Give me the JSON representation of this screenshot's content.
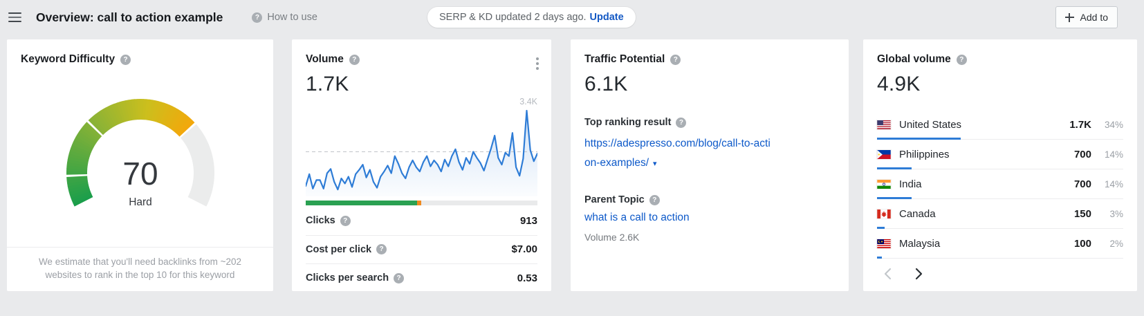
{
  "header": {
    "title": "Overview: call to action example",
    "how_to_use": "How to use",
    "update_notice": "SERP & KD updated 2 days ago.",
    "update_action": "Update",
    "add_to": "Add to"
  },
  "cards": {
    "keyword_difficulty": {
      "title": "Keyword Difficulty",
      "value": "70",
      "difficulty_label": "Hard",
      "note": "We estimate that you'll need backlinks from ~202 websites to rank in the top 10 for this keyword",
      "gauge": {
        "value": 70,
        "max": 100,
        "start_angle": -117,
        "end_angle": 117,
        "segment_boundaries": [
          10,
          30,
          70
        ],
        "color_stops": [
          [
            0,
            "#1b9e4b"
          ],
          [
            0.32,
            "#8db335"
          ],
          [
            0.52,
            "#ccbf1d"
          ],
          [
            0.7,
            "#f4a70b"
          ]
        ],
        "rest_color": "#ebecec"
      }
    },
    "volume": {
      "title": "Volume",
      "value": "1.7K",
      "chart": {
        "type": "area",
        "peak_label": "3.4K",
        "dashed_reference": 52,
        "line_color": "#2e7cd6",
        "values": [
          12,
          26,
          9,
          19,
          19,
          9,
          27,
          32,
          17,
          8,
          21,
          15,
          23,
          11,
          26,
          31,
          37,
          22,
          31,
          17,
          10,
          23,
          29,
          36,
          27,
          47,
          38,
          27,
          21,
          34,
          42,
          34,
          29,
          40,
          47,
          35,
          42,
          37,
          29,
          43,
          35,
          47,
          55,
          40,
          31,
          45,
          38,
          52,
          45,
          39,
          30,
          43,
          56,
          71,
          45,
          37,
          51,
          47,
          74,
          34,
          24,
          44,
          100,
          54,
          41,
          50
        ]
      },
      "clicks_bar": [
        {
          "name": "organic",
          "color": "#2aa152",
          "pct": 48
        },
        {
          "name": "paid",
          "color": "#f08a1e",
          "pct": 2
        },
        {
          "name": "empty",
          "color": "#e9eaeb",
          "pct": 50
        }
      ],
      "stats": [
        {
          "label": "Clicks",
          "value": "913"
        },
        {
          "label": "Cost per click",
          "value": "$7.00"
        },
        {
          "label": "Clicks per search",
          "value": "0.53"
        }
      ]
    },
    "traffic_potential": {
      "title": "Traffic Potential",
      "value": "6.1K",
      "top_ranking_label": "Top ranking result",
      "top_ranking_url_line1": "https://adespresso.com/blog/call-to-acti",
      "top_ranking_url_line2": "on-examples/",
      "parent_topic_label": "Parent Topic",
      "parent_topic": "what is a call to action",
      "parent_topic_volume": "Volume 2.6K"
    },
    "global_volume": {
      "title": "Global volume",
      "value": "4.9K",
      "countries": [
        {
          "flag": "us",
          "name": "United States",
          "value": "1.7K",
          "pct": "34%",
          "bar_pct": 34
        },
        {
          "flag": "ph",
          "name": "Philippines",
          "value": "700",
          "pct": "14%",
          "bar_pct": 14
        },
        {
          "flag": "in",
          "name": "India",
          "value": "700",
          "pct": "14%",
          "bar_pct": 14
        },
        {
          "flag": "ca",
          "name": "Canada",
          "value": "150",
          "pct": "3%",
          "bar_pct": 3
        },
        {
          "flag": "my",
          "name": "Malaysia",
          "value": "100",
          "pct": "2%",
          "bar_pct": 2
        }
      ]
    }
  },
  "colors": {
    "accent_blue": "#2e7cd6",
    "link_blue": "#0d59c9",
    "bar_green": "#2aa152",
    "bar_orange": "#f08a1e"
  }
}
